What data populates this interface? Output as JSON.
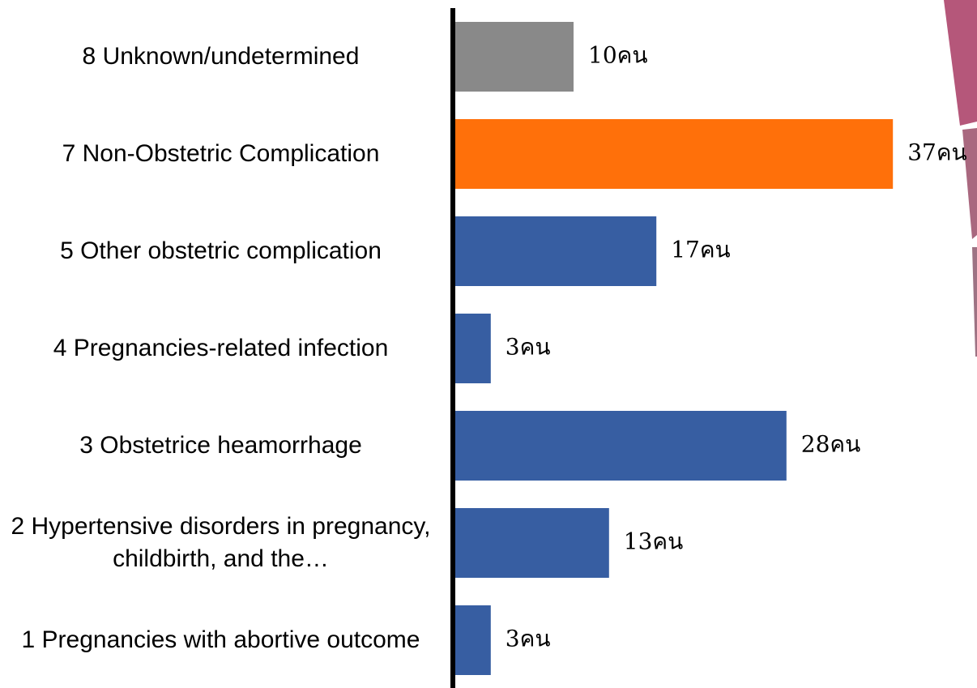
{
  "chart_data": {
    "type": "bar",
    "orientation": "horizontal",
    "categories": [
      "8 Unknown/undetermined",
      "7  Non-Obstetric Complication",
      "5 Other obstetric complication",
      "4 Pregnancies-related infection",
      "3 Obstetrice heamorrhage",
      "2 Hypertensive disorders in pregnancy, childbirth, and the…",
      "1 Pregnancies with abortive outcome"
    ],
    "values": [
      10,
      37,
      17,
      3,
      28,
      13,
      3
    ],
    "value_labels": [
      "10คน",
      "37คน",
      "17คน",
      "3คน",
      "28คน",
      "13คน",
      "3คน"
    ],
    "colors": [
      "#898989",
      "#ff700a",
      "#375ea2",
      "#375ea2",
      "#375ea2",
      "#375ea2",
      "#375ea2"
    ]
  }
}
